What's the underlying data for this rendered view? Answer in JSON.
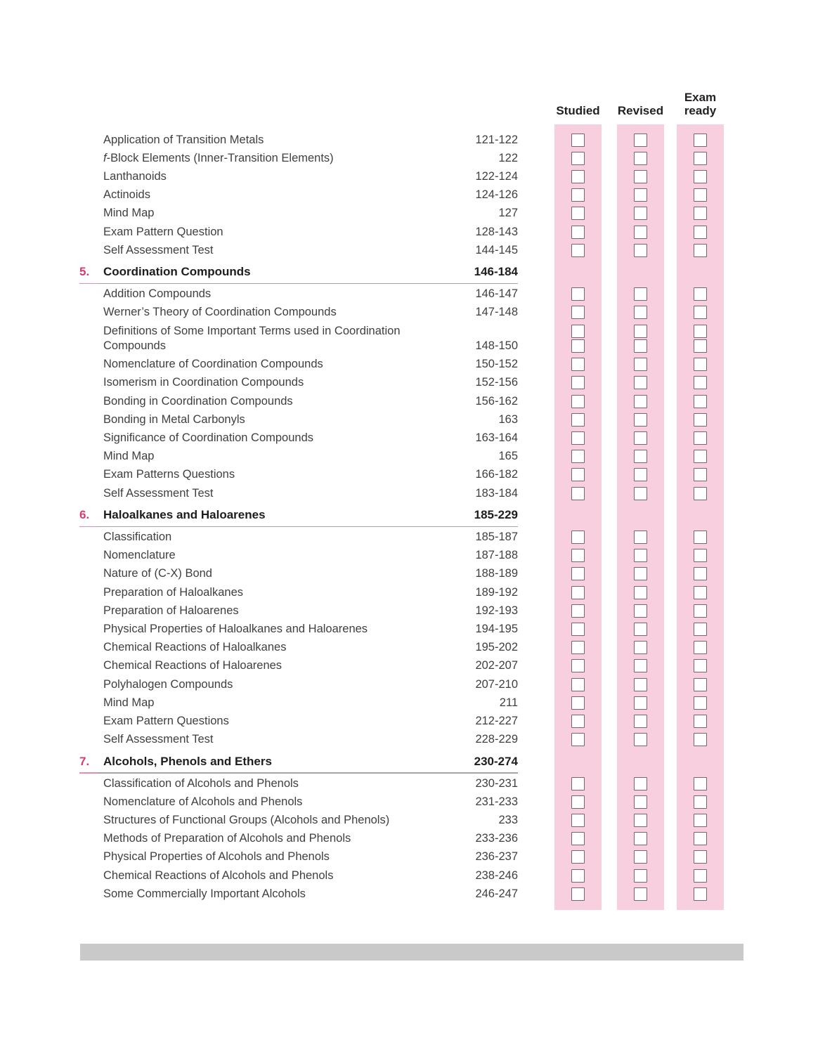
{
  "tracker": {
    "columns": [
      {
        "key": "studied",
        "label": "Studied"
      },
      {
        "key": "revised",
        "label": "Revised"
      },
      {
        "key": "exam-ready",
        "label": "Exam ready"
      }
    ],
    "band_color": "#f8cfdf",
    "checkbox_border_color": "#7c6170",
    "checkbox_fill_color": "#ffffff"
  },
  "colors": {
    "accent_number": "#d63a72",
    "accent_rule": "#e58cb0",
    "body_text": "#3f3f3f",
    "heading_text": "#1d1d1d",
    "rule_gray": "#a3a3a3",
    "footer_bar": "#c9c9c9"
  },
  "toc": {
    "items": [
      {
        "type": "entry",
        "label": "Application of Transition Metals",
        "pages": "121-122"
      },
      {
        "type": "entry",
        "italic_prefix": "f",
        "label": "-Block Elements (Inner-Transition Elements)",
        "pages": "122"
      },
      {
        "type": "entry",
        "label": "Lanthanoids",
        "pages": "122-124"
      },
      {
        "type": "entry",
        "label": "Actinoids",
        "pages": "124-126"
      },
      {
        "type": "entry",
        "label": "Mind Map",
        "pages": "127"
      },
      {
        "type": "entry",
        "label": "Exam Pattern Question",
        "pages": "128-143"
      },
      {
        "type": "entry",
        "label": "Self Assessment Test",
        "pages": "144-145"
      },
      {
        "type": "section",
        "number": "5.",
        "label": "Coordination Compounds",
        "pages": "146-184"
      },
      {
        "type": "entry",
        "label": "Addition Compounds",
        "pages": "146-147"
      },
      {
        "type": "entry",
        "label": "Werner’s Theory of Coordination Compounds",
        "pages": "147-148"
      },
      {
        "type": "entry",
        "lines": [
          "Definitions of Some Important Terms used in Coordination",
          "Compounds"
        ],
        "pages": "148-150"
      },
      {
        "type": "entry",
        "label": "Nomenclature of Coordination Compounds",
        "pages": "150-152"
      },
      {
        "type": "entry",
        "label": "Isomerism in Coordination Compounds",
        "pages": "152-156"
      },
      {
        "type": "entry",
        "label": "Bonding in Coordination Compounds",
        "pages": "156-162"
      },
      {
        "type": "entry",
        "label": "Bonding in Metal Carbonyls",
        "pages": "163"
      },
      {
        "type": "entry",
        "label": "Significance of Coordination Compounds",
        "pages": "163-164"
      },
      {
        "type": "entry",
        "label": "Mind Map",
        "pages": "165"
      },
      {
        "type": "entry",
        "label": "Exam Patterns Questions",
        "pages": "166-182"
      },
      {
        "type": "entry",
        "label": "Self Assessment Test",
        "pages": "183-184"
      },
      {
        "type": "section",
        "number": "6.",
        "label": "Haloalkanes and Haloarenes",
        "pages": "185-229"
      },
      {
        "type": "entry",
        "label": "Classification",
        "pages": "185-187"
      },
      {
        "type": "entry",
        "label": "Nomenclature",
        "pages": "187-188"
      },
      {
        "type": "entry",
        "label": "Nature of (C-X) Bond",
        "pages": "188-189"
      },
      {
        "type": "entry",
        "label": "Preparation of Haloalkanes",
        "pages": "189-192"
      },
      {
        "type": "entry",
        "label": "Preparation of Haloarenes",
        "pages": "192-193"
      },
      {
        "type": "entry",
        "label": "Physical Properties of Haloalkanes and Haloarenes",
        "pages": "194-195"
      },
      {
        "type": "entry",
        "label": "Chemical Reactions of Haloalkanes",
        "pages": "195-202"
      },
      {
        "type": "entry",
        "label": "Chemical Reactions of Haloarenes",
        "pages": "202-207"
      },
      {
        "type": "entry",
        "label": "Polyhalogen Compounds",
        "pages": "207-210"
      },
      {
        "type": "entry",
        "label": "Mind Map",
        "pages": "211"
      },
      {
        "type": "entry",
        "label": "Exam Pattern Questions",
        "pages": "212-227"
      },
      {
        "type": "entry",
        "label": "Self Assessment Test",
        "pages": "228-229"
      },
      {
        "type": "section",
        "number": "7.",
        "label": "Alcohols, Phenols and Ethers",
        "pages": "230-274"
      },
      {
        "type": "entry",
        "label": "Classification of Alcohols and Phenols",
        "pages": "230-231"
      },
      {
        "type": "entry",
        "label": "Nomenclature of Alcohols and Phenols",
        "pages": "231-233"
      },
      {
        "type": "entry",
        "label": "Structures of Functional Groups (Alcohols and Phenols)",
        "pages": "233"
      },
      {
        "type": "entry",
        "label": "Methods of Preparation of Alcohols and Phenols",
        "pages": "233-236"
      },
      {
        "type": "entry",
        "label": "Physical Properties of Alcohols and Phenols",
        "pages": "236-237"
      },
      {
        "type": "entry",
        "label": "Chemical Reactions of Alcohols and Phenols",
        "pages": "238-246"
      },
      {
        "type": "entry",
        "label": "Some Commercially Important Alcohols",
        "pages": "246-247"
      }
    ]
  }
}
